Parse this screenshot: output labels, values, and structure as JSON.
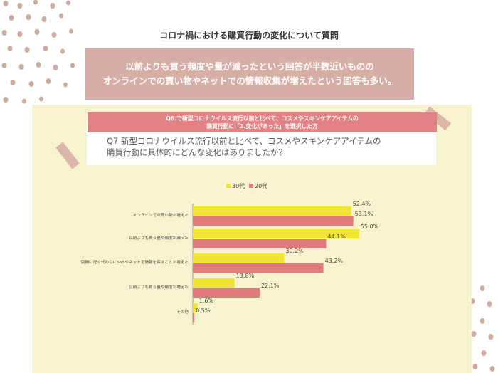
{
  "header": {
    "title": "コロナ禍における購買行動の変化について質問",
    "banner_line1": "以前よりも買う頻度や量が減ったという回答が半数近いものの",
    "banner_line2": "オンラインでの買い物やネットでの情報収集が増えたという回答も多い。"
  },
  "filter_bar": {
    "line1": "Q6.で新型コロナウイルス流行以前と比べて、コスメやスキンケアアイテムの",
    "line2": "購買行動に「1.変化があった」を選択した方"
  },
  "question": {
    "line1": "Q7 新型コロナウイルス流行以前と比べて、コスメやスキンケアアイテムの",
    "line2": "購買行動に具体的にどんな変化はありましたか？"
  },
  "colors": {
    "series_30s": "#f2e433",
    "series_20s": "#e07a7c",
    "banner": "#d6aea6",
    "panel": "#f8f3cf",
    "dots": "#d1aa9d"
  },
  "chart_data": {
    "type": "bar",
    "orientation": "horizontal",
    "legend_position": "top",
    "categories": [
      "オンラインでの買い物が増えた",
      "以前よりも買う量や頻度が減った",
      "店舗に行く代わりにSNSやネットで情報を探すことが増えた",
      "以前よりも買う量や頻度が増えた",
      "その他"
    ],
    "series": [
      {
        "name": "30代",
        "values": [
          52.4,
          55.0,
          30.2,
          13.8,
          1.6
        ],
        "labels": [
          "52.4%",
          "55.0%",
          "30.2%",
          "13.8%",
          "1.6%"
        ]
      },
      {
        "name": "20代",
        "values": [
          53.1,
          44.1,
          43.2,
          22.1,
          0.5
        ],
        "labels": [
          "53.1%",
          "44.1%",
          "43.2%",
          "22.1%",
          "0.5%"
        ]
      }
    ],
    "xlim": [
      0,
      100
    ],
    "grid": false
  }
}
